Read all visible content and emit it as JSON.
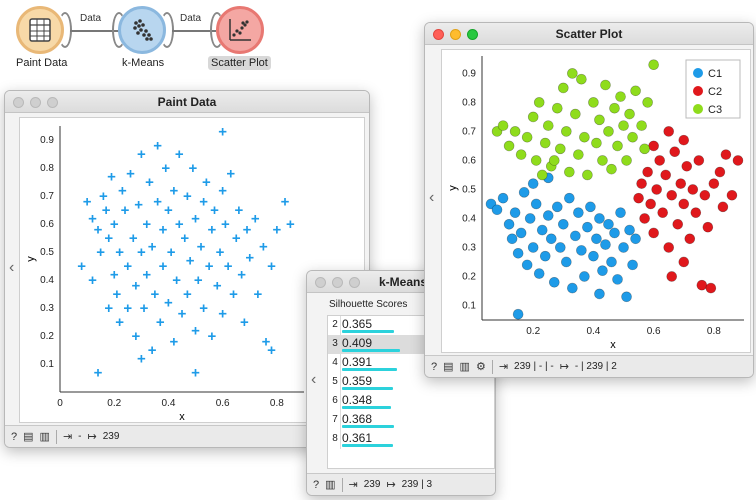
{
  "workflow": {
    "nodes": [
      {
        "label": "Paint Data",
        "icon": "paint-data-icon"
      },
      {
        "label": "k-Means",
        "icon": "kmeans-icon"
      },
      {
        "label": "Scatter Plot",
        "icon": "scatter-plot-icon"
      }
    ],
    "links": [
      "Data",
      "Data"
    ]
  },
  "paint_window": {
    "title": "Paint Data",
    "status": {
      "input": "-",
      "output": "239"
    }
  },
  "kmeans_window": {
    "title": "k-Means",
    "section_label": "Silhouette Scores",
    "scores": [
      {
        "k": "2",
        "score": "0.365"
      },
      {
        "k": "3",
        "score": "0.409"
      },
      {
        "k": "4",
        "score": "0.391"
      },
      {
        "k": "5",
        "score": "0.359"
      },
      {
        "k": "6",
        "score": "0.348"
      },
      {
        "k": "7",
        "score": "0.368"
      },
      {
        "k": "8",
        "score": "0.361"
      }
    ],
    "selected_k": "3",
    "status": {
      "input": "239",
      "output": "239 | 3"
    }
  },
  "scatter_window": {
    "title": "Scatter Plot",
    "status": {
      "input": "239 | - | -",
      "output": "- | 239 | 2"
    }
  },
  "colors": {
    "paint": "#1e9be8",
    "C1": "#1e9be8",
    "C2": "#e0181c",
    "C3": "#8fdc1c",
    "bar": "#2cd2dc"
  },
  "chart_data": [
    {
      "type": "scatter",
      "name": "paint-data",
      "xlabel": "x",
      "ylabel": "y",
      "xlim": [
        0,
        0.9
      ],
      "ylim": [
        0,
        0.95
      ],
      "xticks": [
        "0",
        "0.2",
        "0.4",
        "0.6",
        "0.8"
      ],
      "yticks": [
        "0.1",
        "0.2",
        "0.3",
        "0.4",
        "0.5",
        "0.6",
        "0.7",
        "0.8",
        "0.9"
      ],
      "points": [
        [
          0.08,
          0.45
        ],
        [
          0.1,
          0.68
        ],
        [
          0.12,
          0.62
        ],
        [
          0.12,
          0.4
        ],
        [
          0.14,
          0.58
        ],
        [
          0.15,
          0.5
        ],
        [
          0.16,
          0.7
        ],
        [
          0.17,
          0.65
        ],
        [
          0.18,
          0.3
        ],
        [
          0.18,
          0.55
        ],
        [
          0.19,
          0.77
        ],
        [
          0.2,
          0.6
        ],
        [
          0.2,
          0.42
        ],
        [
          0.21,
          0.35
        ],
        [
          0.22,
          0.5
        ],
        [
          0.22,
          0.25
        ],
        [
          0.23,
          0.72
        ],
        [
          0.24,
          0.65
        ],
        [
          0.25,
          0.45
        ],
        [
          0.25,
          0.3
        ],
        [
          0.26,
          0.78
        ],
        [
          0.27,
          0.55
        ],
        [
          0.28,
          0.2
        ],
        [
          0.28,
          0.38
        ],
        [
          0.29,
          0.67
        ],
        [
          0.3,
          0.5
        ],
        [
          0.3,
          0.85
        ],
        [
          0.31,
          0.3
        ],
        [
          0.32,
          0.6
        ],
        [
          0.32,
          0.42
        ],
        [
          0.33,
          0.75
        ],
        [
          0.34,
          0.15
        ],
        [
          0.34,
          0.52
        ],
        [
          0.35,
          0.35
        ],
        [
          0.36,
          0.68
        ],
        [
          0.36,
          0.88
        ],
        [
          0.37,
          0.25
        ],
        [
          0.38,
          0.58
        ],
        [
          0.38,
          0.45
        ],
        [
          0.39,
          0.8
        ],
        [
          0.4,
          0.32
        ],
        [
          0.4,
          0.65
        ],
        [
          0.41,
          0.5
        ],
        [
          0.42,
          0.18
        ],
        [
          0.42,
          0.72
        ],
        [
          0.43,
          0.4
        ],
        [
          0.44,
          0.6
        ],
        [
          0.44,
          0.85
        ],
        [
          0.45,
          0.28
        ],
        [
          0.46,
          0.55
        ],
        [
          0.47,
          0.7
        ],
        [
          0.47,
          0.35
        ],
        [
          0.48,
          0.47
        ],
        [
          0.49,
          0.8
        ],
        [
          0.5,
          0.62
        ],
        [
          0.5,
          0.22
        ],
        [
          0.51,
          0.4
        ],
        [
          0.52,
          0.52
        ],
        [
          0.53,
          0.68
        ],
        [
          0.53,
          0.3
        ],
        [
          0.54,
          0.75
        ],
        [
          0.55,
          0.45
        ],
        [
          0.56,
          0.58
        ],
        [
          0.56,
          0.2
        ],
        [
          0.57,
          0.65
        ],
        [
          0.58,
          0.38
        ],
        [
          0.59,
          0.5
        ],
        [
          0.6,
          0.72
        ],
        [
          0.6,
          0.28
        ],
        [
          0.61,
          0.6
        ],
        [
          0.62,
          0.45
        ],
        [
          0.63,
          0.78
        ],
        [
          0.64,
          0.35
        ],
        [
          0.65,
          0.55
        ],
        [
          0.66,
          0.65
        ],
        [
          0.67,
          0.42
        ],
        [
          0.68,
          0.25
        ],
        [
          0.69,
          0.58
        ],
        [
          0.7,
          0.48
        ],
        [
          0.72,
          0.62
        ],
        [
          0.73,
          0.35
        ],
        [
          0.75,
          0.52
        ],
        [
          0.76,
          0.18
        ],
        [
          0.78,
          0.45
        ],
        [
          0.8,
          0.58
        ],
        [
          0.83,
          0.68
        ],
        [
          0.85,
          0.6
        ],
        [
          0.14,
          0.07
        ],
        [
          0.3,
          0.12
        ],
        [
          0.5,
          0.07
        ],
        [
          0.6,
          0.93
        ],
        [
          0.78,
          0.15
        ]
      ]
    },
    {
      "type": "scatter",
      "name": "kmeans-clusters",
      "xlabel": "x",
      "ylabel": "y",
      "xlim": [
        0.03,
        0.9
      ],
      "ylim": [
        0.05,
        0.96
      ],
      "xticks": [
        "0.2",
        "0.4",
        "0.6",
        "0.8"
      ],
      "yticks": [
        "0.1",
        "0.2",
        "0.3",
        "0.4",
        "0.5",
        "0.6",
        "0.7",
        "0.8",
        "0.9"
      ],
      "legend": {
        "position": "top-right",
        "entries": [
          "C1",
          "C2",
          "C3"
        ]
      },
      "series": [
        {
          "name": "C1",
          "points": [
            [
              0.06,
              0.45
            ],
            [
              0.08,
              0.43
            ],
            [
              0.1,
              0.47
            ],
            [
              0.12,
              0.38
            ],
            [
              0.13,
              0.33
            ],
            [
              0.14,
              0.42
            ],
            [
              0.15,
              0.28
            ],
            [
              0.16,
              0.35
            ],
            [
              0.17,
              0.49
            ],
            [
              0.18,
              0.24
            ],
            [
              0.19,
              0.4
            ],
            [
              0.2,
              0.3
            ],
            [
              0.21,
              0.45
            ],
            [
              0.22,
              0.21
            ],
            [
              0.23,
              0.36
            ],
            [
              0.24,
              0.27
            ],
            [
              0.25,
              0.41
            ],
            [
              0.26,
              0.33
            ],
            [
              0.27,
              0.18
            ],
            [
              0.28,
              0.44
            ],
            [
              0.29,
              0.3
            ],
            [
              0.3,
              0.38
            ],
            [
              0.31,
              0.25
            ],
            [
              0.32,
              0.47
            ],
            [
              0.33,
              0.16
            ],
            [
              0.34,
              0.34
            ],
            [
              0.35,
              0.42
            ],
            [
              0.36,
              0.29
            ],
            [
              0.37,
              0.2
            ],
            [
              0.38,
              0.37
            ],
            [
              0.39,
              0.44
            ],
            [
              0.4,
              0.27
            ],
            [
              0.41,
              0.33
            ],
            [
              0.42,
              0.4
            ],
            [
              0.43,
              0.22
            ],
            [
              0.44,
              0.31
            ],
            [
              0.45,
              0.38
            ],
            [
              0.46,
              0.25
            ],
            [
              0.47,
              0.35
            ],
            [
              0.48,
              0.19
            ],
            [
              0.49,
              0.42
            ],
            [
              0.5,
              0.3
            ],
            [
              0.51,
              0.13
            ],
            [
              0.52,
              0.36
            ],
            [
              0.53,
              0.24
            ],
            [
              0.54,
              0.33
            ],
            [
              0.2,
              0.52
            ],
            [
              0.25,
              0.54
            ],
            [
              0.15,
              0.07
            ],
            [
              0.42,
              0.14
            ]
          ]
        },
        {
          "name": "C2",
          "points": [
            [
              0.55,
              0.47
            ],
            [
              0.56,
              0.52
            ],
            [
              0.57,
              0.4
            ],
            [
              0.58,
              0.56
            ],
            [
              0.59,
              0.45
            ],
            [
              0.6,
              0.35
            ],
            [
              0.61,
              0.5
            ],
            [
              0.62,
              0.6
            ],
            [
              0.63,
              0.42
            ],
            [
              0.64,
              0.55
            ],
            [
              0.65,
              0.3
            ],
            [
              0.66,
              0.48
            ],
            [
              0.67,
              0.63
            ],
            [
              0.68,
              0.38
            ],
            [
              0.69,
              0.52
            ],
            [
              0.7,
              0.45
            ],
            [
              0.71,
              0.58
            ],
            [
              0.72,
              0.33
            ],
            [
              0.73,
              0.5
            ],
            [
              0.74,
              0.42
            ],
            [
              0.75,
              0.6
            ],
            [
              0.76,
              0.17
            ],
            [
              0.77,
              0.48
            ],
            [
              0.78,
              0.37
            ],
            [
              0.8,
              0.52
            ],
            [
              0.82,
              0.56
            ],
            [
              0.83,
              0.44
            ],
            [
              0.84,
              0.62
            ],
            [
              0.86,
              0.48
            ],
            [
              0.88,
              0.6
            ],
            [
              0.6,
              0.65
            ],
            [
              0.65,
              0.7
            ],
            [
              0.7,
              0.67
            ],
            [
              0.66,
              0.2
            ],
            [
              0.7,
              0.25
            ],
            [
              0.79,
              0.16
            ]
          ]
        },
        {
          "name": "C3",
          "points": [
            [
              0.08,
              0.7
            ],
            [
              0.1,
              0.72
            ],
            [
              0.12,
              0.65
            ],
            [
              0.14,
              0.7
            ],
            [
              0.16,
              0.62
            ],
            [
              0.18,
              0.68
            ],
            [
              0.2,
              0.75
            ],
            [
              0.21,
              0.6
            ],
            [
              0.22,
              0.8
            ],
            [
              0.24,
              0.66
            ],
            [
              0.25,
              0.72
            ],
            [
              0.26,
              0.58
            ],
            [
              0.28,
              0.78
            ],
            [
              0.29,
              0.64
            ],
            [
              0.3,
              0.85
            ],
            [
              0.31,
              0.7
            ],
            [
              0.32,
              0.56
            ],
            [
              0.34,
              0.76
            ],
            [
              0.35,
              0.62
            ],
            [
              0.36,
              0.88
            ],
            [
              0.37,
              0.68
            ],
            [
              0.38,
              0.55
            ],
            [
              0.4,
              0.8
            ],
            [
              0.41,
              0.66
            ],
            [
              0.42,
              0.74
            ],
            [
              0.43,
              0.6
            ],
            [
              0.44,
              0.86
            ],
            [
              0.45,
              0.7
            ],
            [
              0.46,
              0.57
            ],
            [
              0.47,
              0.78
            ],
            [
              0.48,
              0.65
            ],
            [
              0.49,
              0.82
            ],
            [
              0.5,
              0.72
            ],
            [
              0.51,
              0.6
            ],
            [
              0.52,
              0.76
            ],
            [
              0.53,
              0.68
            ],
            [
              0.54,
              0.84
            ],
            [
              0.56,
              0.72
            ],
            [
              0.57,
              0.64
            ],
            [
              0.58,
              0.8
            ],
            [
              0.6,
              0.93
            ],
            [
              0.33,
              0.9
            ],
            [
              0.27,
              0.6
            ],
            [
              0.23,
              0.55
            ]
          ]
        }
      ]
    }
  ]
}
